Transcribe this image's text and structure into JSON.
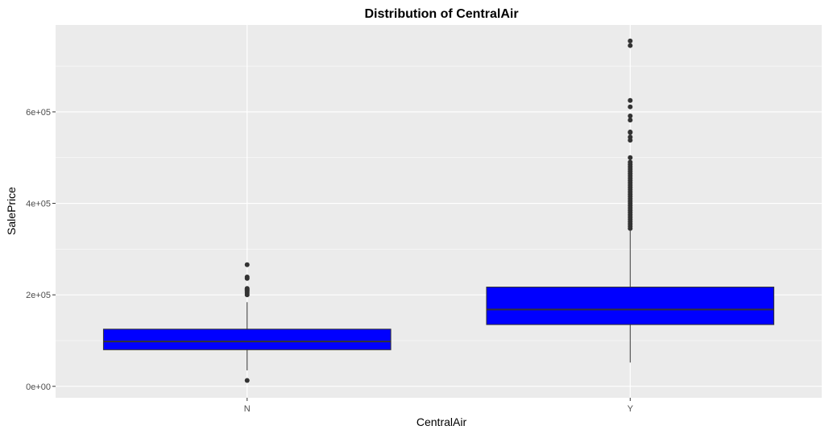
{
  "chart_data": {
    "type": "boxplot",
    "title": "Distribution of CentralAir",
    "xlabel": "CentralAir",
    "ylabel": "SalePrice",
    "categories": [
      "N",
      "Y"
    ],
    "y_ticks": [
      {
        "value": 0,
        "label": "0e+00"
      },
      {
        "value": 200000,
        "label": "2e+05"
      },
      {
        "value": 400000,
        "label": "4e+05"
      },
      {
        "value": 600000,
        "label": "6e+05"
      }
    ],
    "ylim": [
      -25000,
      790000
    ],
    "grid": true,
    "legend": "none",
    "fill_color": "#0000ff",
    "panel_color": "#ebebeb",
    "boxes": [
      {
        "category": "N",
        "whisker_low": 34900,
        "q1": 80000,
        "median": 98000,
        "q3": 125000,
        "whisker_high": 184000,
        "outliers": [
          12789,
          200000,
          204000,
          207500,
          210000,
          212000,
          214000,
          236000,
          239000,
          265979
        ]
      },
      {
        "category": "Y",
        "whisker_low": 52000,
        "q1": 135000,
        "median": 168000,
        "q3": 217000,
        "whisker_high": 340000,
        "outliers": [
          345000,
          350000,
          355000,
          360000,
          365000,
          370000,
          375000,
          380000,
          385000,
          390000,
          395000,
          400000,
          405000,
          410000,
          415000,
          420000,
          425000,
          430000,
          435000,
          440000,
          445000,
          450000,
          455000,
          460000,
          465000,
          470000,
          475000,
          480000,
          485000,
          490000,
          500000,
          538000,
          545000,
          555000,
          556000,
          582000,
          591000,
          611000,
          625000,
          745000,
          755000
        ]
      }
    ]
  }
}
